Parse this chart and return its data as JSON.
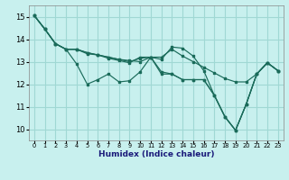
{
  "xlabel": "Humidex (Indice chaleur)",
  "bg_color": "#c8f0ee",
  "grid_color": "#a0d8d4",
  "line_color": "#1a6b5a",
  "xlim": [
    -0.5,
    23.5
  ],
  "ylim": [
    9.5,
    15.5
  ],
  "yticks": [
    10,
    11,
    12,
    13,
    14,
    15
  ],
  "xticks": [
    0,
    1,
    2,
    3,
    4,
    5,
    6,
    7,
    8,
    9,
    10,
    11,
    12,
    13,
    14,
    15,
    16,
    17,
    18,
    19,
    20,
    21,
    22,
    23
  ],
  "lines": [
    [
      15.05,
      14.45,
      13.8,
      13.55,
      12.9,
      12.0,
      12.2,
      12.45,
      12.1,
      12.15,
      12.55,
      13.2,
      12.55,
      12.45,
      12.2,
      12.2,
      12.2,
      11.5,
      10.55,
      9.95,
      11.1,
      12.45,
      12.95,
      12.6
    ],
    [
      15.05,
      14.45,
      13.8,
      13.55,
      13.55,
      13.4,
      13.3,
      13.2,
      13.1,
      13.05,
      13.0,
      13.2,
      13.2,
      13.55,
      13.25,
      13.0,
      12.75,
      12.5,
      12.25,
      12.1,
      12.1,
      12.45,
      12.95,
      12.6
    ],
    [
      15.05,
      14.45,
      13.8,
      13.55,
      13.55,
      13.4,
      13.3,
      13.2,
      13.1,
      13.0,
      13.15,
      13.2,
      13.1,
      13.65,
      13.6,
      13.25,
      12.6,
      11.5,
      10.55,
      9.95,
      11.1,
      12.45,
      12.95,
      12.6
    ],
    [
      15.05,
      14.45,
      13.8,
      13.55,
      13.55,
      13.35,
      13.3,
      13.15,
      13.05,
      12.95,
      13.2,
      13.2,
      12.45,
      12.45,
      12.2,
      12.2,
      12.2,
      11.5,
      10.55,
      9.95,
      11.1,
      12.45,
      12.95,
      12.6
    ]
  ]
}
